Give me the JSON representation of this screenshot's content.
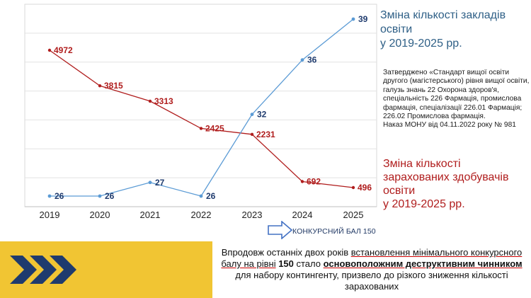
{
  "chart_data": {
    "type": "line",
    "categories": [
      "2019",
      "2020",
      "2021",
      "2022",
      "2023",
      "2024",
      "2025"
    ],
    "series": [
      {
        "values": [
          4972,
          3815,
          3313,
          2425,
          2231,
          692,
          496
        ],
        "labels": [
          "4972",
          "3815",
          "3313",
          "2425",
          "2231",
          "692",
          "496"
        ],
        "color": "#b01d1d"
      },
      {
        "values": [
          26,
          26,
          27,
          26,
          32,
          36,
          39
        ],
        "labels": [
          "26",
          "26",
          "27",
          "26",
          "32",
          "36",
          "39"
        ],
        "color": "#5b9bd5"
      }
    ],
    "grid": true
  },
  "title_blue": [
    "Зміна кількості закладів",
    "освіти",
    "у 2019-2025 рр."
  ],
  "note": {
    "text": "Затверджено «Стандарт вищої освіти другого (магістерського) рівня вищої освіти, галузь знань 22 Охорона здоров'я, спеціальність 226 Фармація, промислова фармація, спеціалізації 226.01 Фармація; 226.02 Промислова фармація.",
    "order": "Наказ МОНУ від 04.11.2022 року № 981"
  },
  "title_red": [
    "Зміна кількості",
    "зарахованих здобувачів",
    "освіти",
    "у 2019-2025 рр."
  ],
  "arrow_label": "КОНКУРСНИЙ БАЛ 150",
  "colors": {
    "banner": "#1f3b6e",
    "accent": "#f1c533",
    "red": "#b01d1d",
    "blue": "#5b9bd5"
  },
  "banner": {
    "icon": "triple-chevron-right-icon",
    "t1": "Впродовж останніх двох років ",
    "t2": "встановлення мінімального конкурсного балу на рівні",
    "t3": " 150",
    "t4": " стало ",
    "t5": "основоположним деструктивним чинником",
    "t6": " для набору контингенту, призвело до різкого зниження кількості зарахованих"
  }
}
